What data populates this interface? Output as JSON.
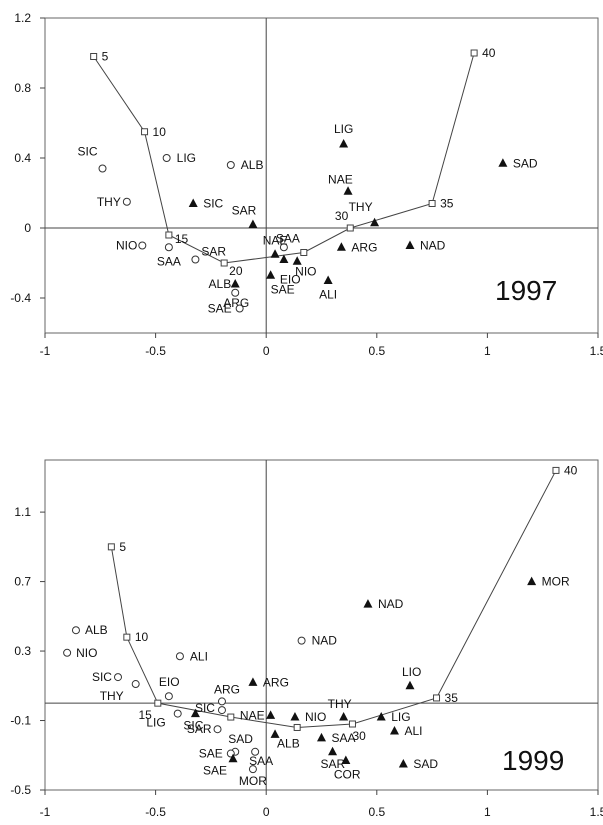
{
  "chart_data": [
    {
      "type": "scatter",
      "annotation": "1997",
      "xlim": [
        -1,
        1.5
      ],
      "ylim": [
        -0.6,
        1.2
      ],
      "xticks": [
        -1,
        -0.5,
        0,
        0.5,
        1,
        1.5
      ],
      "xtick_labels": [
        "-1",
        "-0.5",
        "0",
        "0.5",
        "1",
        "1.5"
      ],
      "yticks": [
        -0.4,
        0,
        0.4,
        0.8,
        1.2
      ],
      "ytick_labels": [
        "-0.4",
        "0",
        "0.4",
        "0.8",
        "1.2"
      ],
      "trajectory": [
        {
          "label": "5",
          "x": -0.78,
          "y": 0.98
        },
        {
          "label": "10",
          "x": -0.55,
          "y": 0.55
        },
        {
          "label": "15",
          "x": -0.44,
          "y": -0.04
        },
        {
          "label": "20",
          "x": -0.19,
          "y": -0.2
        },
        {
          "label": "25",
          "x": 0.17,
          "y": -0.14
        },
        {
          "label": "30",
          "x": 0.38,
          "y": 0.0
        },
        {
          "label": "35",
          "x": 0.75,
          "y": 0.14
        },
        {
          "label": "40",
          "x": 0.94,
          "y": 1.0
        }
      ],
      "trajectory_label_indices": [
        0,
        1,
        2,
        3,
        5,
        6,
        7
      ],
      "circles": [
        {
          "label": "SIC",
          "x": -0.74,
          "y": 0.34
        },
        {
          "label": "LIG",
          "x": -0.45,
          "y": 0.4
        },
        {
          "label": "ALB",
          "x": -0.16,
          "y": 0.36
        },
        {
          "label": "THY",
          "x": -0.63,
          "y": 0.15
        },
        {
          "label": "NIO",
          "x": -0.56,
          "y": -0.1
        },
        {
          "label": "SAA",
          "x": -0.44,
          "y": -0.11
        },
        {
          "label": "SAR",
          "x": -0.32,
          "y": -0.18
        },
        {
          "label": "SAA",
          "x": 0.08,
          "y": -0.11
        },
        {
          "label": "ARG",
          "x": -0.14,
          "y": -0.37
        },
        {
          "label": "SAE",
          "x": -0.12,
          "y": -0.46
        }
      ],
      "triangles": [
        {
          "label": "LIG",
          "x": 0.35,
          "y": 0.48
        },
        {
          "label": "SAD",
          "x": 1.07,
          "y": 0.37
        },
        {
          "label": "NAE",
          "x": 0.37,
          "y": 0.21
        },
        {
          "label": "SIC",
          "x": -0.33,
          "y": 0.14
        },
        {
          "label": "SAR",
          "x": -0.06,
          "y": 0.02
        },
        {
          "label": "THY",
          "x": 0.49,
          "y": 0.03
        },
        {
          "label": "NAE",
          "x": 0.04,
          "y": -0.15
        },
        {
          "label": "NIO",
          "x": 0.14,
          "y": -0.19
        },
        {
          "label": "EIO",
          "x": 0.08,
          "y": -0.18
        },
        {
          "label": "ARG",
          "x": 0.34,
          "y": -0.11
        },
        {
          "label": "NAD",
          "x": 0.65,
          "y": -0.1
        },
        {
          "label": "SAE",
          "x": 0.02,
          "y": -0.27
        },
        {
          "label": "ALI",
          "x": 0.28,
          "y": -0.3
        },
        {
          "label": "ALB",
          "x": -0.14,
          "y": -0.32
        }
      ]
    },
    {
      "type": "scatter",
      "annotation": "1999",
      "xlim": [
        -1,
        1.5
      ],
      "ylim": [
        -0.5,
        1.4
      ],
      "xticks": [
        -1,
        -0.5,
        0,
        0.5,
        1,
        1.5
      ],
      "xtick_labels": [
        "-1",
        "-0.5",
        "0",
        "0.5",
        "1",
        "1.5"
      ],
      "yticks": [
        -0.5,
        -0.1,
        0.3,
        0.7,
        1.1
      ],
      "ytick_labels": [
        "-0.5",
        "-0.1",
        "0.3",
        "0.7",
        "1.1"
      ],
      "trajectory": [
        {
          "label": "5",
          "x": -0.7,
          "y": 0.9
        },
        {
          "label": "10",
          "x": -0.63,
          "y": 0.38
        },
        {
          "label": "15",
          "x": -0.49,
          "y": 0.0
        },
        {
          "label": "20",
          "x": -0.16,
          "y": -0.08
        },
        {
          "label": "25",
          "x": 0.14,
          "y": -0.14
        },
        {
          "label": "30",
          "x": 0.39,
          "y": -0.12
        },
        {
          "label": "35",
          "x": 0.77,
          "y": 0.03
        },
        {
          "label": "40",
          "x": 1.31,
          "y": 1.34
        }
      ],
      "trajectory_label_indices": [
        0,
        1,
        2,
        5,
        6,
        7
      ],
      "circles": [
        {
          "label": "ALB",
          "x": -0.86,
          "y": 0.42
        },
        {
          "label": "NIO",
          "x": -0.9,
          "y": 0.29
        },
        {
          "label": "ALI",
          "x": -0.39,
          "y": 0.27
        },
        {
          "label": "NAD",
          "x": 0.16,
          "y": 0.36
        },
        {
          "label": "SIC",
          "x": -0.67,
          "y": 0.15
        },
        {
          "label": "THY",
          "x": -0.59,
          "y": 0.11
        },
        {
          "label": "EIO",
          "x": -0.44,
          "y": 0.04
        },
        {
          "label": "ARG",
          "x": -0.2,
          "y": 0.01
        },
        {
          "label": "SIC",
          "x": -0.2,
          "y": -0.04
        },
        {
          "label": "LIG",
          "x": -0.4,
          "y": -0.06
        },
        {
          "label": "SAR",
          "x": -0.22,
          "y": -0.15
        },
        {
          "label": "SAD",
          "x": -0.14,
          "y": -0.28
        },
        {
          "label": "SAA",
          "x": -0.05,
          "y": -0.28
        },
        {
          "label": "SAE",
          "x": -0.16,
          "y": -0.29
        },
        {
          "label": "MOR",
          "x": -0.06,
          "y": -0.38
        }
      ],
      "triangles": [
        {
          "label": "MOR",
          "x": 1.2,
          "y": 0.7
        },
        {
          "label": "NAD",
          "x": 0.46,
          "y": 0.57
        },
        {
          "label": "LIO",
          "x": 0.65,
          "y": 0.1
        },
        {
          "label": "ARG",
          "x": -0.06,
          "y": 0.12
        },
        {
          "label": "NAE",
          "x": 0.02,
          "y": -0.07
        },
        {
          "label": "NIO",
          "x": 0.13,
          "y": -0.08
        },
        {
          "label": "THY",
          "x": 0.35,
          "y": -0.08
        },
        {
          "label": "LIG",
          "x": 0.52,
          "y": -0.08
        },
        {
          "label": "ALI",
          "x": 0.58,
          "y": -0.16
        },
        {
          "label": "ALB",
          "x": 0.04,
          "y": -0.18
        },
        {
          "label": "SAA",
          "x": 0.25,
          "y": -0.2
        },
        {
          "label": "SAR",
          "x": 0.3,
          "y": -0.28
        },
        {
          "label": "COR",
          "x": 0.36,
          "y": -0.33
        },
        {
          "label": "SAD",
          "x": 0.62,
          "y": -0.35
        },
        {
          "label": "SAE",
          "x": -0.15,
          "y": -0.32
        },
        {
          "label": "SIC",
          "x": -0.32,
          "y": -0.06
        }
      ]
    }
  ]
}
